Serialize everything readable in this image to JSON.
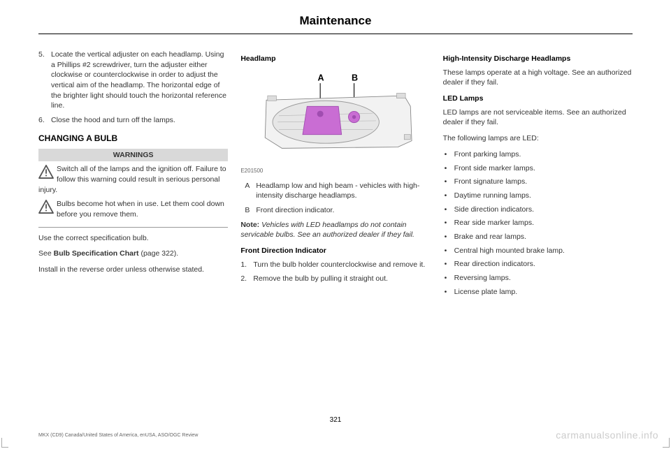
{
  "header": {
    "title": "Maintenance"
  },
  "col1": {
    "step5": {
      "num": "5.",
      "text": "Locate the vertical adjuster on each headlamp. Using a Phillips #2 screwdriver, turn the adjuster either clockwise or counterclockwise in order to adjust the vertical aim of the headlamp. The horizontal edge of the brighter light should touch the horizontal reference line."
    },
    "step6": {
      "num": "6.",
      "text": "Close the hood and turn off the lamps."
    },
    "changing_heading": "CHANGING A BULB",
    "warnings_label": "WARNINGS",
    "warn1": "Switch all of the lamps and the ignition off. Failure to follow this warning could result in serious personal injury.",
    "warn2": "Bulbs become hot when in use. Let them cool down before you remove them.",
    "p1": "Use the correct specification bulb.",
    "p2a": "See ",
    "p2b": "Bulb Specification Chart",
    "p2c": " (page 322).",
    "p3": "Install in the reverse order unless otherwise stated."
  },
  "col2": {
    "headlamp_heading": "Headlamp",
    "fig_labels": {
      "A": "A",
      "B": "B"
    },
    "fig_id": "E201500",
    "label_A": {
      "lbl": "A",
      "text": "Headlamp low and high beam - vehicles with high-intensity discharge headlamps."
    },
    "label_B": {
      "lbl": "B",
      "text": "Front direction indicator."
    },
    "note_label": "Note:",
    "note_text": " Vehicles with LED headlamps do not contain servicable bulbs. See an authorized dealer if they fail.",
    "fdi_heading": "Front Direction Indicator",
    "fdi1": {
      "num": "1.",
      "text": "Turn the bulb holder counterclockwise and remove it."
    },
    "fdi2": {
      "num": "2.",
      "text": "Remove the bulb by pulling it straight out."
    }
  },
  "col3": {
    "hid_heading": "High-Intensity Discharge Headlamps",
    "hid_text": "These lamps operate at a high voltage. See an authorized dealer if they fail.",
    "led_heading": "LED Lamps",
    "led_text": "LED lamps are not serviceable items. See an authorized dealer if they fail.",
    "led_intro": "The following lamps are LED:",
    "bullets": [
      "Front parking lamps.",
      "Front side marker lamps.",
      "Front signature lamps.",
      "Daytime running lamps.",
      "Side direction indicators.",
      "Rear side marker lamps.",
      "Brake and rear lamps.",
      "Central high mounted brake lamp.",
      "Rear direction indicators.",
      "Reversing lamps.",
      "License plate lamp."
    ]
  },
  "footer": {
    "page_num": "321",
    "line": "MKX (CD9) Canada/United States of America, enUSA, ASO/OGC Review",
    "watermark": "carmanualsonline.info"
  },
  "colors": {
    "highlight": "#c96dd3",
    "highlight_stroke": "#a04db0",
    "metal": "#cccccc",
    "metal_dark": "#999999"
  }
}
